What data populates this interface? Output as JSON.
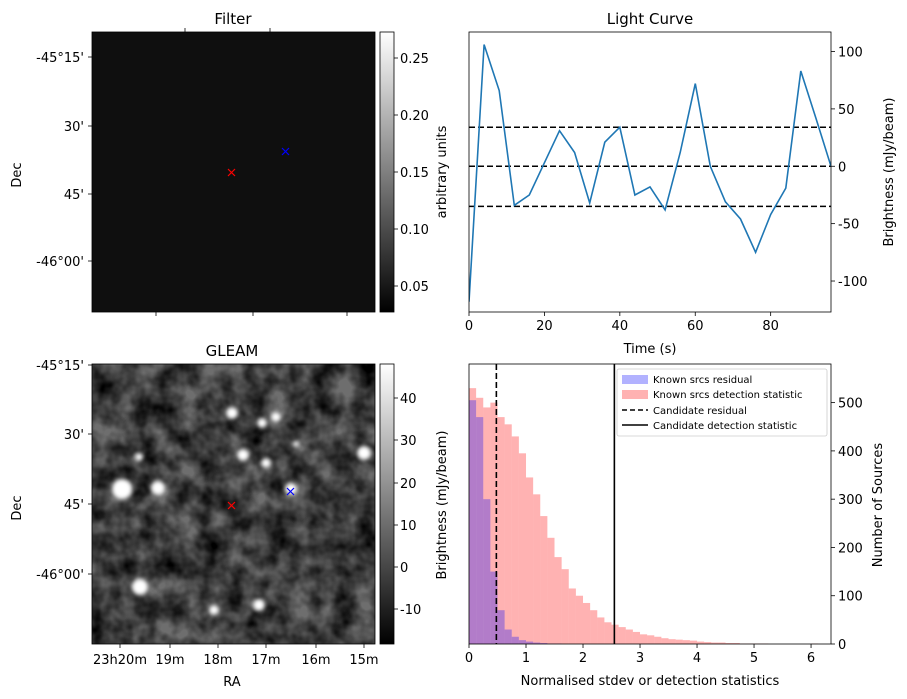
{
  "panels": {
    "filter": {
      "title": "Filter",
      "ylabel": "Dec",
      "dec_ticks": [
        "-45°15'",
        "30'",
        "45'",
        "-46°00'"
      ],
      "colorbar": {
        "label": "arbitrary units",
        "ticks": [
          "0.25",
          "0.20",
          "0.15",
          "0.10",
          "0.05"
        ]
      }
    },
    "gleam": {
      "title": "GLEAM",
      "ylabel": "Dec",
      "xlabel": "RA",
      "dec_ticks": [
        "-45°15'",
        "30'",
        "45'",
        "-46°00'"
      ],
      "ra_ticks": [
        "23h20m",
        "19m",
        "18m",
        "17m",
        "16m",
        "15m"
      ],
      "colorbar": {
        "label": "Brightness (mJy/beam)",
        "ticks": [
          "40",
          "30",
          "20",
          "10",
          "0",
          "-10"
        ]
      }
    },
    "lightcurve": {
      "title": "Light Curve",
      "xlabel": "Time (s)",
      "ylabel": "Brightness (mJy/beam)",
      "xticks": [
        "0",
        "20",
        "40",
        "60",
        "80"
      ],
      "yticks": [
        "100",
        "50",
        "0",
        "-50",
        "-100"
      ]
    },
    "histogram": {
      "xlabel": "Normalised stdev or detection statistics",
      "ylabel_right": "Number of Sources",
      "xticks": [
        "0",
        "1",
        "2",
        "3",
        "4",
        "5",
        "6"
      ],
      "yticks": [
        "500",
        "400",
        "300",
        "200",
        "100",
        "0"
      ],
      "legend": [
        "Known srcs residual",
        "Known srcs detection statistic",
        "Candidate residual",
        "Candidate detection statistic"
      ]
    }
  },
  "chart_data": [
    {
      "type": "heatmap",
      "title": "Filter",
      "ylabel": "Dec",
      "colorbar_range": [
        0.025,
        0.27
      ],
      "colormap": "gray",
      "markers": [
        {
          "color": "#ff0000",
          "symbol": "x"
        },
        {
          "color": "#0000ff",
          "symbol": "x"
        }
      ]
    },
    {
      "type": "heatmap",
      "title": "GLEAM",
      "xlabel": "RA",
      "ylabel": "Dec",
      "colorbar_range": [
        -17,
        48
      ],
      "colormap": "gray",
      "markers": [
        {
          "color": "#ff0000",
          "symbol": "x"
        },
        {
          "color": "#0000ff",
          "symbol": "x"
        }
      ]
    },
    {
      "type": "line",
      "title": "Light Curve",
      "xlabel": "Time (s)",
      "ylabel": "Brightness (mJy/beam)",
      "xlim": [
        0,
        96
      ],
      "ylim": [
        -127,
        117
      ],
      "x": [
        0,
        4,
        8,
        12,
        16,
        20,
        24,
        28,
        32,
        36,
        40,
        44,
        48,
        52,
        56,
        60,
        64,
        68,
        72,
        76,
        80,
        84,
        88,
        92,
        96
      ],
      "y": [
        -118,
        106,
        66,
        -34,
        -25,
        3,
        31,
        12,
        -32,
        21,
        34,
        -25,
        -18,
        -38,
        12,
        72,
        0,
        -31,
        -46,
        -75,
        -42,
        -19,
        83,
        42,
        0
      ],
      "hlines": [
        {
          "y": 34,
          "style": "dashed"
        },
        {
          "y": 0,
          "style": "dashed"
        },
        {
          "y": -35,
          "style": "dashed"
        }
      ],
      "line_color": "#1f77b4"
    },
    {
      "type": "bar",
      "xlabel": "Normalised stdev or detection statistics",
      "ylabel": "Number of Sources",
      "xlim": [
        0,
        6.35
      ],
      "ylim": [
        0,
        580
      ],
      "bin_width": 0.125,
      "series": [
        {
          "name": "Known srcs residual",
          "color": "#0000ff",
          "alpha": 0.3,
          "values": [
            505,
            470,
            300,
            150,
            70,
            30,
            15,
            8,
            5,
            3,
            2,
            1,
            1,
            0,
            0,
            0
          ]
        },
        {
          "name": "Known srcs detection statistic",
          "color": "#ff0000",
          "alpha": 0.3,
          "values": [
            530,
            510,
            490,
            500,
            470,
            455,
            430,
            395,
            345,
            310,
            265,
            220,
            180,
            155,
            115,
            100,
            85,
            70,
            55,
            45,
            40,
            35,
            30,
            25,
            20,
            18,
            15,
            12,
            10,
            9,
            8,
            7,
            5,
            4,
            3,
            3,
            2,
            2,
            1,
            1,
            1,
            1,
            0,
            0,
            0,
            0,
            0,
            0,
            1,
            0,
            0
          ]
        }
      ],
      "vlines": [
        {
          "name": "Candidate residual",
          "x": 0.48,
          "style": "dashed"
        },
        {
          "name": "Candidate detection statistic",
          "x": 2.55,
          "style": "solid"
        }
      ]
    }
  ]
}
